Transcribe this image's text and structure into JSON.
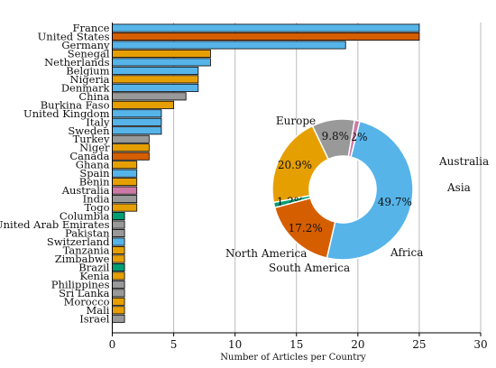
{
  "chart_data": [
    {
      "type": "bar",
      "orientation": "horizontal",
      "xlabel": "Number of Articles per Country",
      "xlim": [
        0,
        30
      ],
      "xticks": [
        0,
        5,
        10,
        15,
        20,
        25,
        30
      ],
      "grid": "vertical",
      "categories": [
        "France",
        "United States",
        "Germany",
        "Senegal",
        "Netherlands",
        "Belgium",
        "Nigeria",
        "Denmark",
        "China",
        "Burkina Faso",
        "United Kingdom",
        "Italy",
        "Sweden",
        "Turkey",
        "Niger",
        "Canada",
        "Ghana",
        "Spain",
        "Benin",
        "Australia",
        "India",
        "Togo",
        "Columbia",
        "United Arab Emirates",
        "Pakistan",
        "Switzerland",
        "Tanzania",
        "Zimbabwe",
        "Brazil",
        "Kenia",
        "Philippines",
        "Sri Lanka",
        "Morocco",
        "Mali",
        "Israel"
      ],
      "values": [
        25,
        25,
        19,
        8,
        8,
        7,
        7,
        7,
        6,
        5,
        4,
        4,
        4,
        3,
        3,
        3,
        2,
        2,
        2,
        2,
        2,
        2,
        1,
        1,
        1,
        1,
        1,
        1,
        1,
        1,
        1,
        1,
        1,
        1,
        1
      ],
      "regions": [
        "Europe",
        "North America",
        "Europe",
        "Africa",
        "Europe",
        "Europe",
        "Africa",
        "Europe",
        "Asia",
        "Africa",
        "Europe",
        "Europe",
        "Europe",
        "Asia",
        "Africa",
        "North America",
        "Africa",
        "Europe",
        "Africa",
        "Australia",
        "Asia",
        "Africa",
        "South America",
        "Asia",
        "Asia",
        "Europe",
        "Africa",
        "Africa",
        "South America",
        "Africa",
        "Asia",
        "Asia",
        "Africa",
        "Africa",
        "Asia"
      ]
    },
    {
      "type": "pie",
      "style": "donut",
      "slices": [
        {
          "label": "Europe",
          "value": 49.7,
          "value_label": "49.7%"
        },
        {
          "label": "Australia",
          "value": 1.2,
          "value_label": "1.2%"
        },
        {
          "label": "Asia",
          "value": 9.8,
          "value_label": "9.8%"
        },
        {
          "label": "Africa",
          "value": 20.9,
          "value_label": "20.9%"
        },
        {
          "label": "South America",
          "value": 1.2,
          "value_label": "1.2%"
        },
        {
          "label": "North America",
          "value": 17.2,
          "value_label": "17.2%"
        }
      ]
    }
  ],
  "colors": {
    "Europe": "#56b4e9",
    "North America": "#d55e00",
    "Africa": "#e69f00",
    "Asia": "#999999",
    "Australia": "#cc79a7",
    "South America": "#009e73",
    "grid": "#bbbbbb",
    "axis": "#000000"
  }
}
